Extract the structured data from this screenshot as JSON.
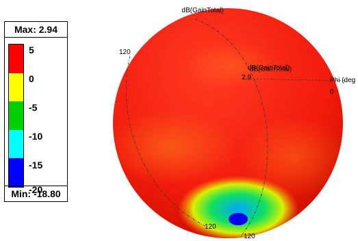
{
  "title": "dB(GainTotal)",
  "legend": {
    "max_label": "Max: 2.94",
    "min_label": "Min: -18.80",
    "ticks": [
      "5",
      "0",
      "-5",
      "-10",
      "-15",
      "-20"
    ],
    "colors": [
      "#ff0000",
      "#ffff00",
      "#00d000",
      "#00ffff",
      "#0000ff"
    ]
  },
  "axes": {
    "phi_label": "Phi (deg",
    "phi_zero": "0",
    "theta_label_top": "120",
    "theta_label_bottom_a": "120",
    "theta_label_bottom_b": "120",
    "overlap_label": "dB(GainTotal)",
    "overlap_value": "2.9"
  },
  "pattern": {
    "max_db": 2.94,
    "min_db": -18.8,
    "min_location": "bottom",
    "body_color": "#f03010",
    "lobe_color": "#ff8c1a"
  }
}
